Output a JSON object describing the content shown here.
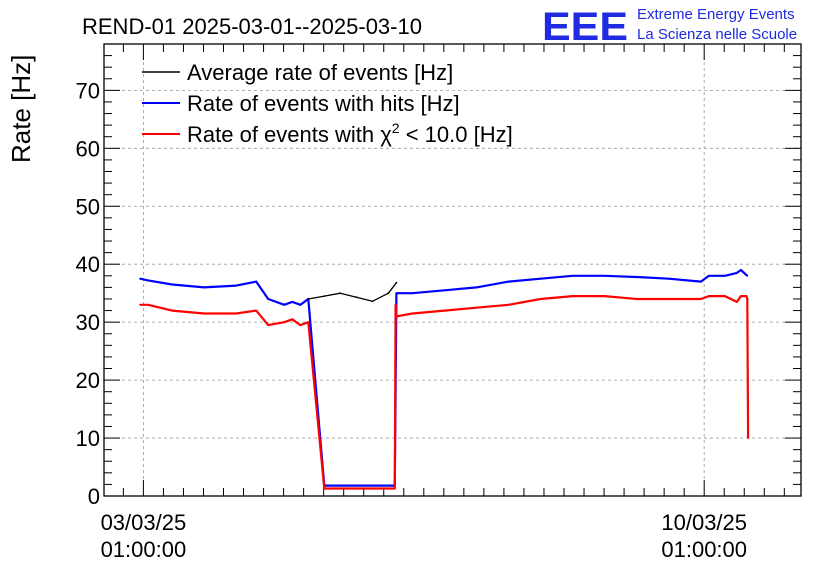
{
  "chart_data": {
    "type": "line",
    "title": "REND-01 2025-03-01--2025-03-10",
    "xlabel": "",
    "ylabel": "Rate [Hz]",
    "x_unit": "days since 2025-03-01 00:00",
    "xlim": [
      1.55,
      10.25
    ],
    "ylim": [
      0,
      78
    ],
    "yticks": [
      0,
      10,
      20,
      30,
      40,
      50,
      60,
      70
    ],
    "xticks": [
      {
        "x": 2.0417,
        "date": "03/03/25",
        "time": "01:00:00"
      },
      {
        "x": 9.0417,
        "date": "10/03/25",
        "time": "01:00:00"
      }
    ],
    "grid": true,
    "legend_position": "top-left",
    "series": [
      {
        "name": "Average rate of events [Hz]",
        "color": "#000000",
        "x": [
          4.1,
          4.3,
          4.5,
          4.7,
          4.9,
          5.1,
          5.2
        ],
        "values": [
          34.0,
          34.5,
          35.0,
          34.3,
          33.6,
          35.0,
          36.8
        ]
      },
      {
        "name": "Rate of events with hits [Hz]",
        "color": "#0000ff",
        "x": [
          2.0,
          2.1,
          2.4,
          2.8,
          3.2,
          3.45,
          3.6,
          3.8,
          3.9,
          4.0,
          4.1,
          4.3,
          5.0,
          5.18,
          5.2,
          5.4,
          5.8,
          6.2,
          6.6,
          7.0,
          7.4,
          7.8,
          8.2,
          8.6,
          9.0,
          9.1,
          9.3,
          9.45,
          9.5,
          9.58
        ],
        "values": [
          37.5,
          37.2,
          36.5,
          36.0,
          36.3,
          37.0,
          34.0,
          33.0,
          33.5,
          33.0,
          34.0,
          1.8,
          1.8,
          1.8,
          35.0,
          35.0,
          35.5,
          36.0,
          37.0,
          37.5,
          38.0,
          38.0,
          37.8,
          37.5,
          37.0,
          38.0,
          38.0,
          38.5,
          39.0,
          38.0
        ]
      },
      {
        "name": "Rate of events with χ² < 10.0 [Hz]",
        "legend_main": "Rate of events with ",
        "legend_symbol": "χ",
        "legend_sup": "2",
        "legend_tail": " < 10.0 [Hz]",
        "color": "#ff0000",
        "x": [
          2.0,
          2.1,
          2.4,
          2.8,
          3.2,
          3.45,
          3.6,
          3.8,
          3.9,
          4.0,
          4.1,
          4.3,
          5.0,
          5.18,
          5.19,
          5.2,
          5.4,
          5.8,
          6.2,
          6.6,
          7.0,
          7.4,
          7.8,
          8.2,
          8.6,
          9.0,
          9.1,
          9.3,
          9.45,
          9.5,
          9.57,
          9.58,
          9.59
        ],
        "values": [
          33.0,
          33.0,
          32.0,
          31.5,
          31.5,
          32.0,
          29.5,
          30.0,
          30.5,
          29.5,
          30.0,
          1.3,
          1.3,
          1.3,
          33.0,
          31.0,
          31.5,
          32.0,
          32.5,
          33.0,
          34.0,
          34.5,
          34.5,
          34.0,
          34.0,
          34.0,
          34.5,
          34.5,
          33.5,
          34.5,
          34.5,
          34.0,
          10.0
        ]
      }
    ]
  },
  "logo": {
    "letters": "EEE",
    "line1": "Extreme Energy Events",
    "line2": "La Scienza nelle Scuole"
  }
}
